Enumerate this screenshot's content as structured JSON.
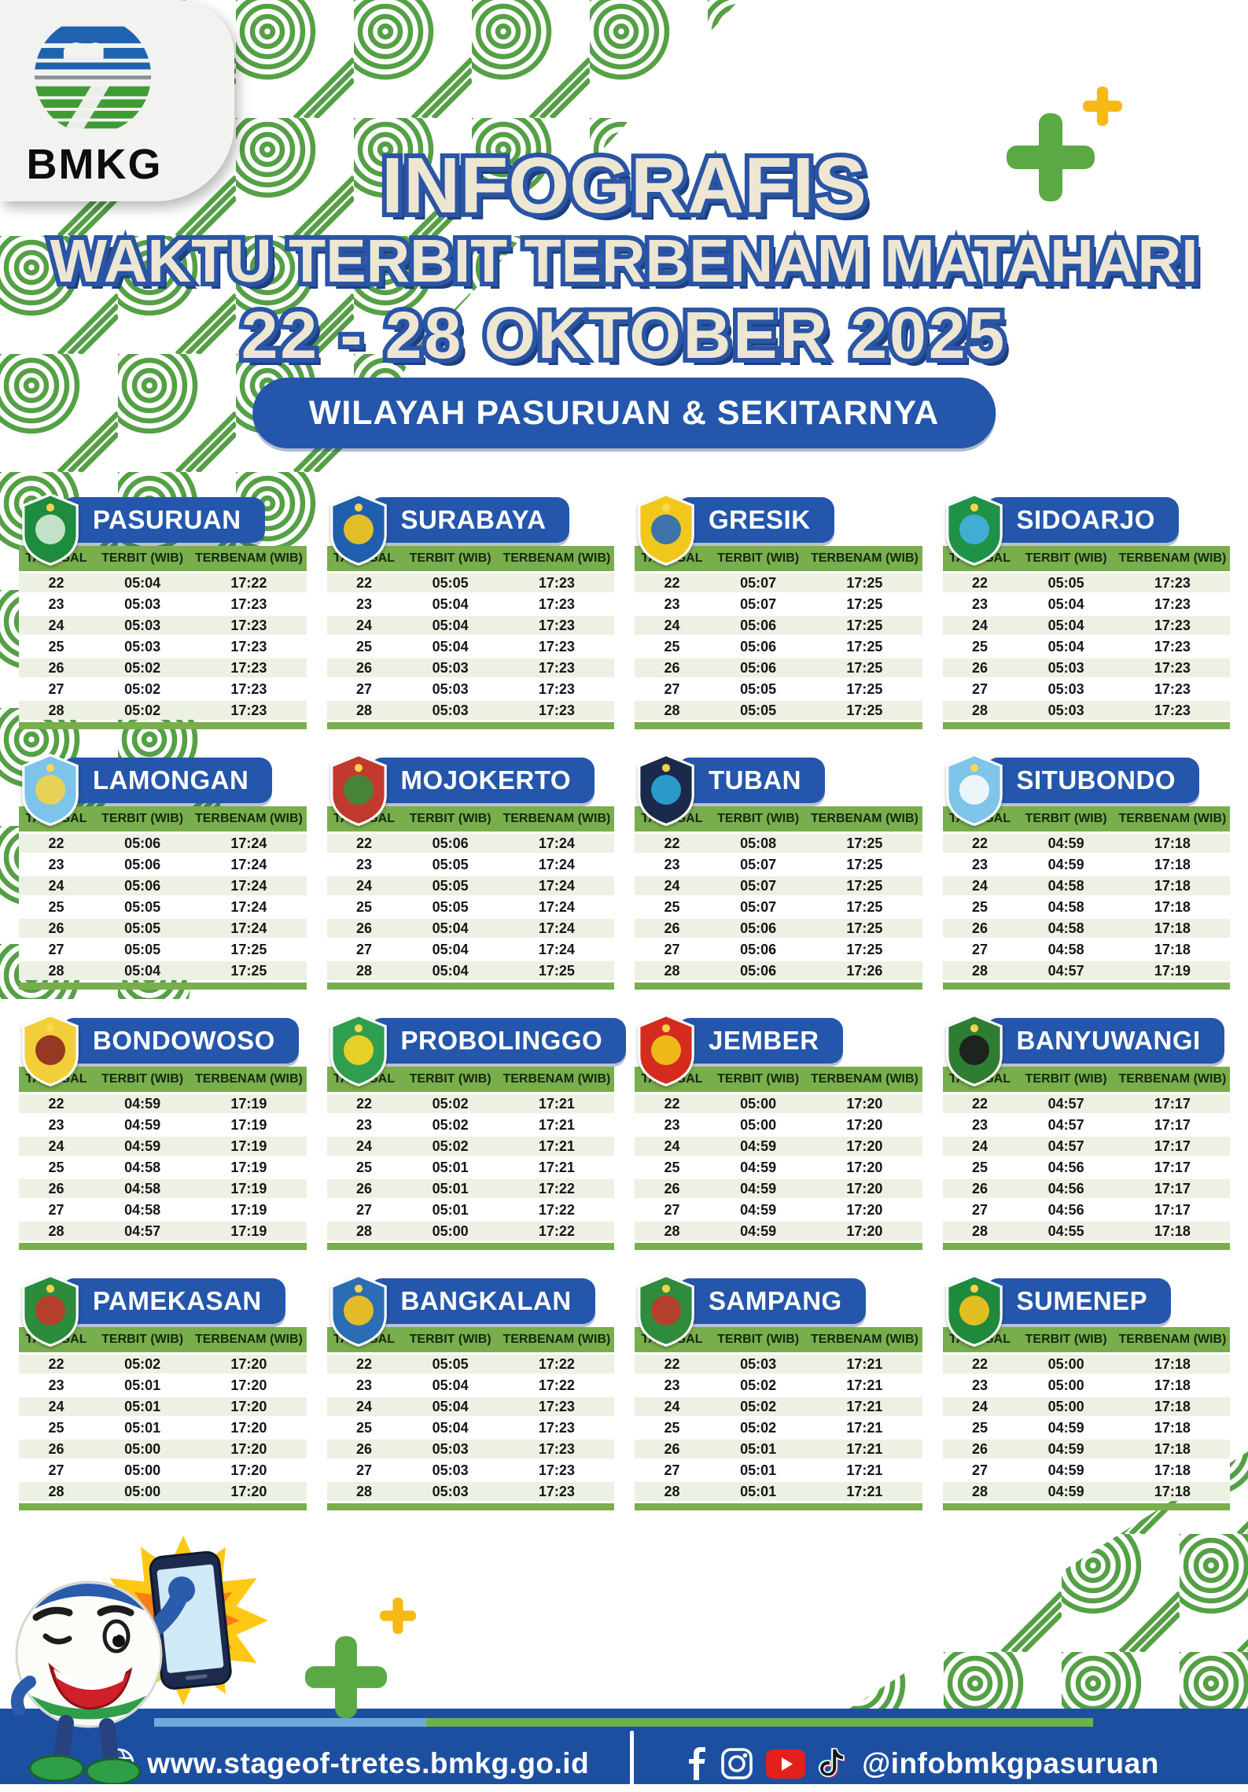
{
  "header": {
    "agency": "BMKG",
    "title_line1": "INFOGRAFIS",
    "title_line2": "WAKTU TERBIT TERBENAM MATAHARI",
    "title_line3": "22 - 28 OKTOBER 2025",
    "subtitle": "WILAYAH PASURUAN & SEKITARNYA"
  },
  "table_headers": {
    "tanggal": "TANGGAL",
    "terbit": "TERBIT (WIB)",
    "terbenam": "TERBENAM (WIB)"
  },
  "cities": [
    {
      "name": "PASURUAN",
      "logo_colors": [
        "#1f8b3e",
        "#cfe9d2"
      ],
      "rows": [
        [
          "22",
          "05:04",
          "17:22"
        ],
        [
          "23",
          "05:03",
          "17:23"
        ],
        [
          "24",
          "05:03",
          "17:23"
        ],
        [
          "25",
          "05:03",
          "17:23"
        ],
        [
          "26",
          "05:02",
          "17:23"
        ],
        [
          "27",
          "05:02",
          "17:23"
        ],
        [
          "28",
          "05:02",
          "17:23"
        ]
      ]
    },
    {
      "name": "SURABAYA",
      "logo_colors": [
        "#1f5fae",
        "#f3c71d"
      ],
      "rows": [
        [
          "22",
          "05:05",
          "17:23"
        ],
        [
          "23",
          "05:04",
          "17:23"
        ],
        [
          "24",
          "05:04",
          "17:23"
        ],
        [
          "25",
          "05:04",
          "17:23"
        ],
        [
          "26",
          "05:03",
          "17:23"
        ],
        [
          "27",
          "05:03",
          "17:23"
        ],
        [
          "28",
          "05:03",
          "17:23"
        ]
      ]
    },
    {
      "name": "GRESIK",
      "logo_colors": [
        "#f2c71d",
        "#2e6cb5"
      ],
      "rows": [
        [
          "22",
          "05:07",
          "17:25"
        ],
        [
          "23",
          "05:07",
          "17:25"
        ],
        [
          "24",
          "05:06",
          "17:25"
        ],
        [
          "25",
          "05:06",
          "17:25"
        ],
        [
          "26",
          "05:06",
          "17:25"
        ],
        [
          "27",
          "05:05",
          "17:25"
        ],
        [
          "28",
          "05:05",
          "17:25"
        ]
      ]
    },
    {
      "name": "SIDOARJO",
      "logo_colors": [
        "#1f9247",
        "#45b0e0"
      ],
      "rows": [
        [
          "22",
          "05:05",
          "17:23"
        ],
        [
          "23",
          "05:04",
          "17:23"
        ],
        [
          "24",
          "05:04",
          "17:23"
        ],
        [
          "25",
          "05:04",
          "17:23"
        ],
        [
          "26",
          "05:03",
          "17:23"
        ],
        [
          "27",
          "05:03",
          "17:23"
        ],
        [
          "28",
          "05:03",
          "17:23"
        ]
      ]
    },
    {
      "name": "LAMONGAN",
      "logo_colors": [
        "#7cc4e9",
        "#f2d24b"
      ],
      "rows": [
        [
          "22",
          "05:06",
          "17:24"
        ],
        [
          "23",
          "05:06",
          "17:24"
        ],
        [
          "24",
          "05:06",
          "17:24"
        ],
        [
          "25",
          "05:05",
          "17:24"
        ],
        [
          "26",
          "05:05",
          "17:24"
        ],
        [
          "27",
          "05:05",
          "17:25"
        ],
        [
          "28",
          "05:04",
          "17:25"
        ]
      ]
    },
    {
      "name": "MOJOKERTO",
      "logo_colors": [
        "#c23a2d",
        "#3d8b37"
      ],
      "rows": [
        [
          "22",
          "05:06",
          "17:24"
        ],
        [
          "23",
          "05:05",
          "17:24"
        ],
        [
          "24",
          "05:05",
          "17:24"
        ],
        [
          "25",
          "05:05",
          "17:24"
        ],
        [
          "26",
          "05:04",
          "17:24"
        ],
        [
          "27",
          "05:04",
          "17:24"
        ],
        [
          "28",
          "05:04",
          "17:25"
        ]
      ]
    },
    {
      "name": "TUBAN",
      "logo_colors": [
        "#1b2a4a",
        "#2aa4d4"
      ],
      "rows": [
        [
          "22",
          "05:08",
          "17:25"
        ],
        [
          "23",
          "05:07",
          "17:25"
        ],
        [
          "24",
          "05:07",
          "17:25"
        ],
        [
          "25",
          "05:07",
          "17:25"
        ],
        [
          "26",
          "05:06",
          "17:25"
        ],
        [
          "27",
          "05:06",
          "17:25"
        ],
        [
          "28",
          "05:06",
          "17:26"
        ]
      ]
    },
    {
      "name": "SITUBONDO",
      "logo_colors": [
        "#7fc4e9",
        "#f4f8fb"
      ],
      "rows": [
        [
          "22",
          "04:59",
          "17:18"
        ],
        [
          "23",
          "04:59",
          "17:18"
        ],
        [
          "24",
          "04:58",
          "17:18"
        ],
        [
          "25",
          "04:58",
          "17:18"
        ],
        [
          "26",
          "04:58",
          "17:18"
        ],
        [
          "27",
          "04:58",
          "17:18"
        ],
        [
          "28",
          "04:57",
          "17:19"
        ]
      ]
    },
    {
      "name": "BONDOWOSO",
      "logo_colors": [
        "#f2cf3a",
        "#8e2b21"
      ],
      "rows": [
        [
          "22",
          "04:59",
          "17:19"
        ],
        [
          "23",
          "04:59",
          "17:19"
        ],
        [
          "24",
          "04:59",
          "17:19"
        ],
        [
          "25",
          "04:58",
          "17:19"
        ],
        [
          "26",
          "04:58",
          "17:19"
        ],
        [
          "27",
          "04:58",
          "17:19"
        ],
        [
          "28",
          "04:57",
          "17:19"
        ]
      ]
    },
    {
      "name": "PROBOLINGGO",
      "logo_colors": [
        "#2f9e4f",
        "#f5d426"
      ],
      "rows": [
        [
          "22",
          "05:02",
          "17:21"
        ],
        [
          "23",
          "05:02",
          "17:21"
        ],
        [
          "24",
          "05:02",
          "17:21"
        ],
        [
          "25",
          "05:01",
          "17:21"
        ],
        [
          "26",
          "05:01",
          "17:22"
        ],
        [
          "27",
          "05:01",
          "17:22"
        ],
        [
          "28",
          "05:00",
          "17:22"
        ]
      ]
    },
    {
      "name": "JEMBER",
      "logo_colors": [
        "#d52b1e",
        "#f0c419"
      ],
      "rows": [
        [
          "22",
          "05:00",
          "17:20"
        ],
        [
          "23",
          "05:00",
          "17:20"
        ],
        [
          "24",
          "04:59",
          "17:20"
        ],
        [
          "25",
          "04:59",
          "17:20"
        ],
        [
          "26",
          "04:59",
          "17:20"
        ],
        [
          "27",
          "04:59",
          "17:20"
        ],
        [
          "28",
          "04:59",
          "17:20"
        ]
      ]
    },
    {
      "name": "BANYUWANGI",
      "logo_colors": [
        "#2e7d33",
        "#1c1c1c"
      ],
      "rows": [
        [
          "22",
          "04:57",
          "17:17"
        ],
        [
          "23",
          "04:57",
          "17:17"
        ],
        [
          "24",
          "04:57",
          "17:17"
        ],
        [
          "25",
          "04:56",
          "17:17"
        ],
        [
          "26",
          "04:56",
          "17:17"
        ],
        [
          "27",
          "04:56",
          "17:17"
        ],
        [
          "28",
          "04:55",
          "17:18"
        ]
      ]
    },
    {
      "name": "PAMEKASAN",
      "logo_colors": [
        "#2c8c3c",
        "#c0392b"
      ],
      "rows": [
        [
          "22",
          "05:02",
          "17:20"
        ],
        [
          "23",
          "05:01",
          "17:20"
        ],
        [
          "24",
          "05:01",
          "17:20"
        ],
        [
          "25",
          "05:01",
          "17:20"
        ],
        [
          "26",
          "05:00",
          "17:20"
        ],
        [
          "27",
          "05:00",
          "17:20"
        ],
        [
          "28",
          "05:00",
          "17:20"
        ]
      ]
    },
    {
      "name": "BANGKALAN",
      "logo_colors": [
        "#2a6db5",
        "#f2c21f"
      ],
      "rows": [
        [
          "22",
          "05:05",
          "17:22"
        ],
        [
          "23",
          "05:04",
          "17:22"
        ],
        [
          "24",
          "05:04",
          "17:23"
        ],
        [
          "25",
          "05:04",
          "17:23"
        ],
        [
          "26",
          "05:03",
          "17:23"
        ],
        [
          "27",
          "05:03",
          "17:23"
        ],
        [
          "28",
          "05:03",
          "17:23"
        ]
      ]
    },
    {
      "name": "SAMPANG",
      "logo_colors": [
        "#2f8c3c",
        "#c0392b"
      ],
      "rows": [
        [
          "22",
          "05:03",
          "17:21"
        ],
        [
          "23",
          "05:02",
          "17:21"
        ],
        [
          "24",
          "05:02",
          "17:21"
        ],
        [
          "25",
          "05:02",
          "17:21"
        ],
        [
          "26",
          "05:01",
          "17:21"
        ],
        [
          "27",
          "05:01",
          "17:21"
        ],
        [
          "28",
          "05:01",
          "17:21"
        ]
      ]
    },
    {
      "name": "SUMENEP",
      "logo_colors": [
        "#1f8a3c",
        "#f2c21f"
      ],
      "rows": [
        [
          "22",
          "05:00",
          "17:18"
        ],
        [
          "23",
          "05:00",
          "17:18"
        ],
        [
          "24",
          "05:00",
          "17:18"
        ],
        [
          "25",
          "04:59",
          "17:18"
        ],
        [
          "26",
          "04:59",
          "17:18"
        ],
        [
          "27",
          "04:59",
          "17:18"
        ],
        [
          "28",
          "04:59",
          "17:18"
        ]
      ]
    }
  ],
  "footer": {
    "website": "www.stageof-tretes.bmkg.go.id",
    "handle": "@infobmkgpasuruan",
    "icons": [
      "globe-icon",
      "facebook-icon",
      "instagram-icon",
      "youtube-icon",
      "tiktok-icon"
    ]
  },
  "colors": {
    "brand_blue": "#2456ab",
    "brand_green": "#79ae4c",
    "accent_green": "#5aa945",
    "accent_yellow": "#f7b915",
    "title_cream": "#ede6d3",
    "title_outline": "#2a55a5",
    "footer_blue": "#1d4fa1",
    "youtube_red": "#e3201b",
    "row_alt": "#ecf1e4",
    "pattern_green": "#55a046"
  }
}
